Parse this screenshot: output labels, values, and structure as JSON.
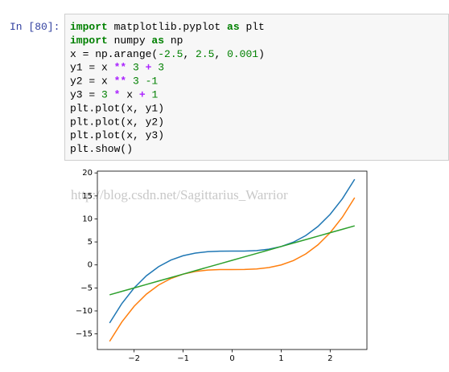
{
  "prompt": "In [80]:",
  "code": {
    "lines": [
      {
        "tokens": [
          {
            "text": "import",
            "color": "#008000",
            "bold": true
          },
          {
            "text": " matplotlib.pyplot ",
            "color": "#000000"
          },
          {
            "text": "as",
            "color": "#008000",
            "bold": true
          },
          {
            "text": " plt",
            "color": "#000000"
          }
        ]
      },
      {
        "tokens": [
          {
            "text": "import",
            "color": "#008000",
            "bold": true
          },
          {
            "text": " numpy ",
            "color": "#000000"
          },
          {
            "text": "as",
            "color": "#008000",
            "bold": true
          },
          {
            "text": " np",
            "color": "#000000"
          }
        ]
      },
      {
        "tokens": [
          {
            "text": "x = np.arange(",
            "color": "#000000"
          },
          {
            "text": "-2.5",
            "color": "#008000"
          },
          {
            "text": ", ",
            "color": "#000000"
          },
          {
            "text": "2.5",
            "color": "#008000"
          },
          {
            "text": ", ",
            "color": "#000000"
          },
          {
            "text": "0.001",
            "color": "#008000"
          },
          {
            "text": ")",
            "color": "#000000"
          }
        ]
      },
      {
        "tokens": [
          {
            "text": "y1 = x ",
            "color": "#000000"
          },
          {
            "text": "**",
            "color": "#aa22ff",
            "bold": true
          },
          {
            "text": " ",
            "color": "#000000"
          },
          {
            "text": "3",
            "color": "#008000"
          },
          {
            "text": " ",
            "color": "#000000"
          },
          {
            "text": "+",
            "color": "#aa22ff",
            "bold": true
          },
          {
            "text": " ",
            "color": "#000000"
          },
          {
            "text": "3",
            "color": "#008000"
          }
        ]
      },
      {
        "tokens": [
          {
            "text": "y2 = x ",
            "color": "#000000"
          },
          {
            "text": "**",
            "color": "#aa22ff",
            "bold": true
          },
          {
            "text": " ",
            "color": "#000000"
          },
          {
            "text": "3 -1",
            "color": "#008000"
          }
        ]
      },
      {
        "tokens": [
          {
            "text": "y3 = ",
            "color": "#000000"
          },
          {
            "text": "3",
            "color": "#008000"
          },
          {
            "text": " ",
            "color": "#000000"
          },
          {
            "text": "*",
            "color": "#aa22ff",
            "bold": true
          },
          {
            "text": " x ",
            "color": "#000000"
          },
          {
            "text": "+",
            "color": "#aa22ff",
            "bold": true
          },
          {
            "text": " ",
            "color": "#000000"
          },
          {
            "text": "1",
            "color": "#008000"
          }
        ]
      },
      {
        "tokens": [
          {
            "text": "plt.plot(x, y1)",
            "color": "#000000"
          }
        ]
      },
      {
        "tokens": [
          {
            "text": "plt.plot(x, y2)",
            "color": "#000000"
          }
        ]
      },
      {
        "tokens": [
          {
            "text": "plt.plot(x, y3)",
            "color": "#000000"
          }
        ]
      },
      {
        "tokens": [
          {
            "text": "plt.show()",
            "color": "#000000"
          }
        ]
      }
    ]
  },
  "chart_data": {
    "type": "line",
    "watermark": "http://blog.csdn.net/Sagittarius_Warrior",
    "x": [
      -2.5,
      -2.25,
      -2,
      -1.75,
      -1.5,
      -1.25,
      -1,
      -0.75,
      -0.5,
      -0.25,
      0,
      0.25,
      0.5,
      0.75,
      1,
      1.25,
      1.5,
      1.75,
      2,
      2.25,
      2.5
    ],
    "series": [
      {
        "color": "#1f77b4",
        "values": [
          -12.625,
          -8.390625,
          -5,
          -2.359375,
          -0.375,
          1.046875,
          2,
          2.578125,
          2.875,
          2.984375,
          3,
          3.015625,
          3.125,
          3.421875,
          4,
          4.953125,
          6.375,
          8.359375,
          11,
          14.390625,
          18.625
        ]
      },
      {
        "color": "#ff7f0e",
        "values": [
          -16.625,
          -12.390625,
          -9,
          -6.359375,
          -4.375,
          -2.953125,
          -2,
          -1.421875,
          -1.125,
          -1.015625,
          -1,
          -0.984375,
          -0.875,
          -0.578125,
          0,
          0.953125,
          2.375,
          4.359375,
          7,
          10.390625,
          14.625
        ]
      },
      {
        "color": "#2ca02c",
        "values": [
          -6.5,
          -5.75,
          -5,
          -4.25,
          -3.5,
          -2.75,
          -2,
          -1.25,
          -0.5,
          0.25,
          1,
          1.75,
          2.5,
          3.25,
          4,
          4.75,
          5.5,
          6.25,
          7,
          7.75,
          8.5
        ]
      }
    ],
    "xlim": [
      -2.75,
      2.75
    ],
    "ylim": [
      -18.3875,
      20.3875
    ],
    "xticks": [
      {
        "value": -2,
        "label": "−2"
      },
      {
        "value": -1,
        "label": "−1"
      },
      0,
      1,
      2
    ],
    "yticks": [
      {
        "value": -15,
        "label": "−15"
      },
      {
        "value": -10,
        "label": "−10"
      },
      {
        "value": -5,
        "label": "−5"
      },
      0,
      5,
      10,
      15,
      20
    ],
    "grid": false
  }
}
